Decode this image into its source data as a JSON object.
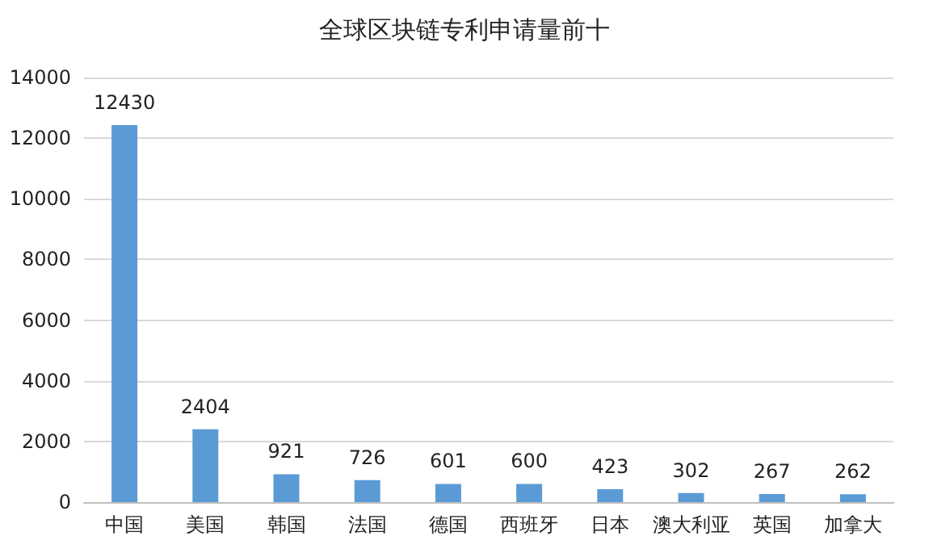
{
  "chart_data": {
    "type": "bar",
    "title": "全球区块链专利申请量前十",
    "categories": [
      "中国",
      "美国",
      "韩国",
      "法国",
      "德国",
      "西班牙",
      "日本",
      "澳大利亚",
      "英国",
      "加拿大"
    ],
    "values": [
      12430,
      2404,
      921,
      726,
      601,
      600,
      423,
      302,
      267,
      262
    ],
    "color": "#5b9bd5",
    "ylim": [
      0,
      14000
    ],
    "yticks": [
      0,
      2000,
      4000,
      6000,
      8000,
      10000,
      12000,
      14000
    ],
    "grid": "y",
    "data_labels": true
  }
}
